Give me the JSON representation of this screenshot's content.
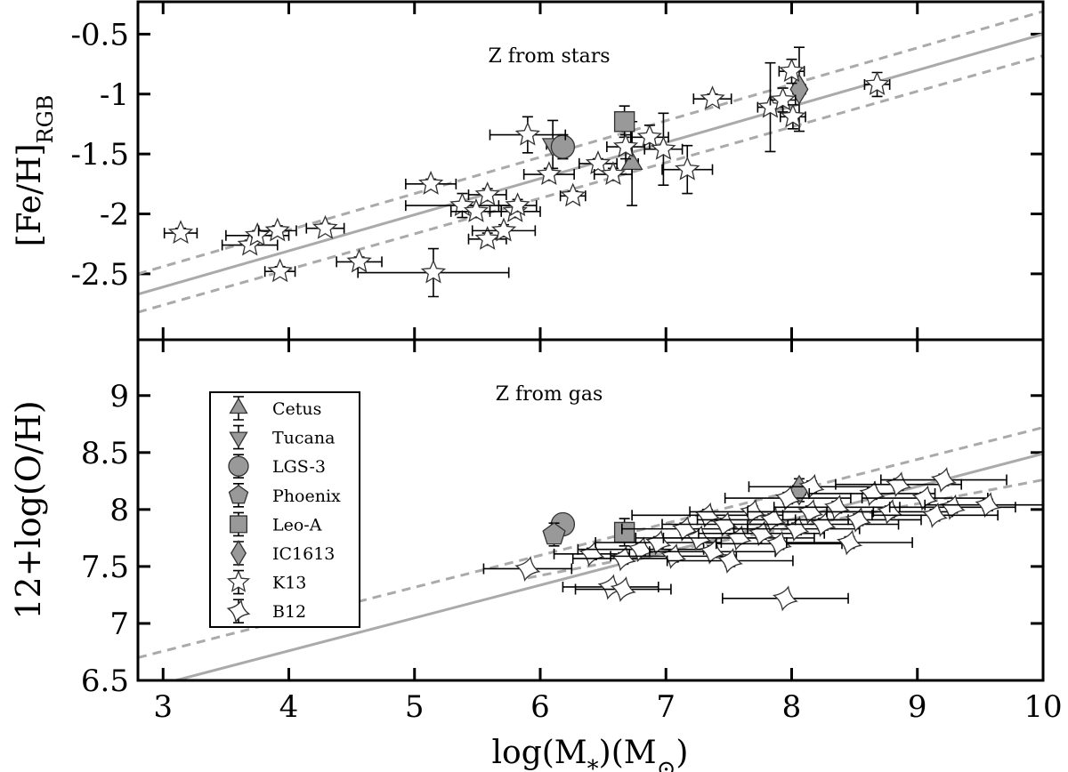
{
  "chart_data": {
    "type": "scatter",
    "xlim": [
      2.8,
      10
    ],
    "xticks": [
      3,
      4,
      5,
      6,
      7,
      8,
      9,
      10
    ],
    "xlabel": [
      "log(M",
      "*",
      ")(M",
      "⊙",
      ")"
    ],
    "legend": "upper left",
    "fit_color": "#aaaaaa",
    "panels": {
      "stars": {
        "annotation": "Z from stars",
        "ylabel": [
          "[Fe/H]",
          "RGB"
        ],
        "ylim": [
          -3.05,
          -0.23
        ],
        "yticks": [
          -2.5,
          -2,
          -1.5,
          -1,
          -0.5
        ],
        "fits": [
          {
            "style": "solid",
            "x": [
              2.8,
              10
            ],
            "values": [
              -2.67,
              -0.5
            ]
          },
          {
            "style": "dashed",
            "x": [
              2.8,
              10
            ],
            "values": [
              -2.5,
              -0.31
            ]
          },
          {
            "style": "dashed",
            "x": [
              2.8,
              10
            ],
            "values": [
              -2.82,
              -0.68
            ]
          }
        ]
      },
      "gas": {
        "annotation": "Z from gas",
        "ylabel": [
          "12+log(O/H)"
        ],
        "ylim": [
          6.5,
          9.49
        ],
        "yticks": [
          6.5,
          7,
          7.5,
          8,
          8.5,
          9
        ],
        "fits": [
          {
            "style": "solid",
            "x": [
              3.1,
              10
            ],
            "values": [
              6.5,
              8.49
            ]
          },
          {
            "style": "dashed",
            "x": [
              2.8,
              10
            ],
            "values": [
              6.7,
              8.72
            ]
          },
          {
            "style": "dashed",
            "x": [
              5.9,
              10
            ],
            "values": [
              7.4,
              8.26
            ]
          }
        ]
      }
    },
    "series": [
      {
        "name": "Cetus",
        "marker": "triangle-up",
        "color": "#999999",
        "stars": {
          "x": [
            6.73
          ],
          "values": [
            -1.58
          ],
          "xerr": [
            0.05
          ],
          "yerr": [
            0.35
          ]
        }
      },
      {
        "name": "Tucana",
        "marker": "triangle-down",
        "color": "#999999",
        "stars": {
          "x": [
            6.1
          ],
          "values": [
            -1.42
          ],
          "xerr": [
            0.05
          ],
          "yerr": [
            0.2
          ]
        }
      },
      {
        "name": "LGS-3",
        "marker": "circle",
        "color": "#999999",
        "stars": {
          "x": [
            6.18
          ],
          "values": [
            -1.44
          ],
          "xerr": [
            0.05
          ],
          "yerr": [
            0.1
          ]
        },
        "gas": {
          "x": [
            6.18
          ],
          "values": [
            7.87
          ],
          "xerr": [
            0.05
          ],
          "yerr": [
            0.05
          ]
        }
      },
      {
        "name": "Phoenix",
        "marker": "pentagon",
        "color": "#999999",
        "gas": {
          "x": [
            6.11
          ],
          "values": [
            7.78
          ],
          "xerr": [
            0.05
          ],
          "yerr": [
            0.1
          ]
        }
      },
      {
        "name": "Leo-A",
        "marker": "square",
        "color": "#999999",
        "stars": {
          "x": [
            6.67
          ],
          "values": [
            -1.23
          ],
          "xerr": [
            0.05
          ],
          "yerr": [
            0.13
          ]
        },
        "gas": {
          "x": [
            6.67
          ],
          "values": [
            7.8
          ],
          "xerr": [
            0.05
          ],
          "yerr": [
            0.12
          ]
        }
      },
      {
        "name": "IC1613",
        "marker": "diamond",
        "color": "#999999",
        "stars": {
          "x": [
            8.06
          ],
          "values": [
            -0.96
          ],
          "xerr": [
            0.05
          ],
          "yerr": [
            0.35
          ]
        },
        "gas": {
          "x": [
            8.06
          ],
          "values": [
            8.17
          ],
          "xerr": [
            0.05
          ],
          "yerr": [
            0.1
          ]
        }
      },
      {
        "name": "K13",
        "marker": "star",
        "color": "#ffffff",
        "stars": {
          "x": [
            3.14,
            3.69,
            3.75,
            3.91,
            4.29,
            3.93,
            4.56,
            5.15,
            5.13,
            5.38,
            5.49,
            5.58,
            5.58,
            5.71,
            5.8,
            5.82,
            5.9,
            6.07,
            6.26,
            6.46,
            6.58,
            6.68,
            6.87,
            6.98,
            7.17,
            7.37,
            7.83,
            7.93,
            8.0,
            8.01,
            8.68
          ],
          "values": [
            -2.16,
            -2.26,
            -2.18,
            -2.14,
            -2.12,
            -2.48,
            -2.4,
            -2.49,
            -1.75,
            -1.93,
            -1.98,
            -1.84,
            -2.21,
            -2.14,
            -1.98,
            -1.93,
            -1.34,
            -1.67,
            -1.85,
            -1.58,
            -1.67,
            -1.44,
            -1.36,
            -1.46,
            -1.63,
            -1.04,
            -1.11,
            -1.05,
            -0.81,
            -1.19,
            -0.92
          ],
          "xerr": [
            0.13,
            0.22,
            0.25,
            0.15,
            0.15,
            0.12,
            0.18,
            0.6,
            0.2,
            0.45,
            0.2,
            0.15,
            0.15,
            0.25,
            0.2,
            0.15,
            0.3,
            0.2,
            0.1,
            0.15,
            0.15,
            0.15,
            0.15,
            0.15,
            0.2,
            0.15,
            0.1,
            0.1,
            0.1,
            0.1,
            0.1
          ],
          "yerr": [
            0.04,
            0.04,
            0.04,
            0.04,
            0.04,
            0.04,
            0.04,
            0.2,
            0.04,
            0.1,
            0.05,
            0.05,
            0.05,
            0.05,
            0.05,
            0.05,
            0.15,
            0.05,
            0.04,
            0.04,
            0.05,
            0.1,
            0.1,
            0.3,
            0.2,
            0.04,
            0.37,
            0.1,
            0.1,
            0.1,
            0.1
          ]
        }
      },
      {
        "name": "B12",
        "marker": "pinwheel",
        "color": "#ffffff",
        "gas": {
          "x": [
            5.9,
            6.56,
            6.66,
            7.95,
            6.41,
            6.66,
            6.8,
            6.94,
            7.06,
            7.15,
            7.26,
            7.33,
            7.37,
            7.47,
            7.51,
            7.58,
            7.69,
            7.76,
            7.85,
            7.9,
            7.97,
            8.04,
            8.15,
            8.16,
            8.25,
            8.36,
            8.46,
            8.53,
            8.64,
            8.78,
            8.85,
            9.06,
            9.21,
            9.28,
            9.56,
            9.14
          ],
          "values": [
            7.48,
            7.32,
            7.3,
            7.22,
            7.61,
            7.57,
            7.65,
            7.71,
            7.59,
            7.83,
            7.75,
            7.95,
            7.63,
            7.87,
            7.55,
            7.75,
            7.98,
            7.79,
            7.91,
            7.7,
            8.1,
            7.83,
            7.98,
            8.2,
            7.87,
            8.02,
            7.71,
            7.91,
            8.14,
            7.98,
            8.22,
            8.1,
            8.26,
            8.02,
            8.04,
            7.95
          ],
          "xerr": [
            0.35,
            0.38,
            0.38,
            0.5,
            0.3,
            0.4,
            0.5,
            0.5,
            0.5,
            0.5,
            0.5,
            0.6,
            0.5,
            0.5,
            0.5,
            0.6,
            0.5,
            0.5,
            0.6,
            0.5,
            0.5,
            0.5,
            0.5,
            0.5,
            0.6,
            0.5,
            0.5,
            0.5,
            0.5,
            0.5,
            0.5,
            0.5,
            0.5,
            0.5,
            0.5,
            0.5
          ],
          "yerr": [
            0.04,
            0.04,
            0.04,
            0.04,
            0.05,
            0.05,
            0.05,
            0.05,
            0.05,
            0.05,
            0.05,
            0.05,
            0.05,
            0.05,
            0.05,
            0.05,
            0.05,
            0.05,
            0.05,
            0.05,
            0.05,
            0.05,
            0.05,
            0.05,
            0.05,
            0.05,
            0.05,
            0.05,
            0.05,
            0.05,
            0.05,
            0.05,
            0.05,
            0.05,
            0.05,
            0.05
          ]
        }
      }
    ]
  }
}
